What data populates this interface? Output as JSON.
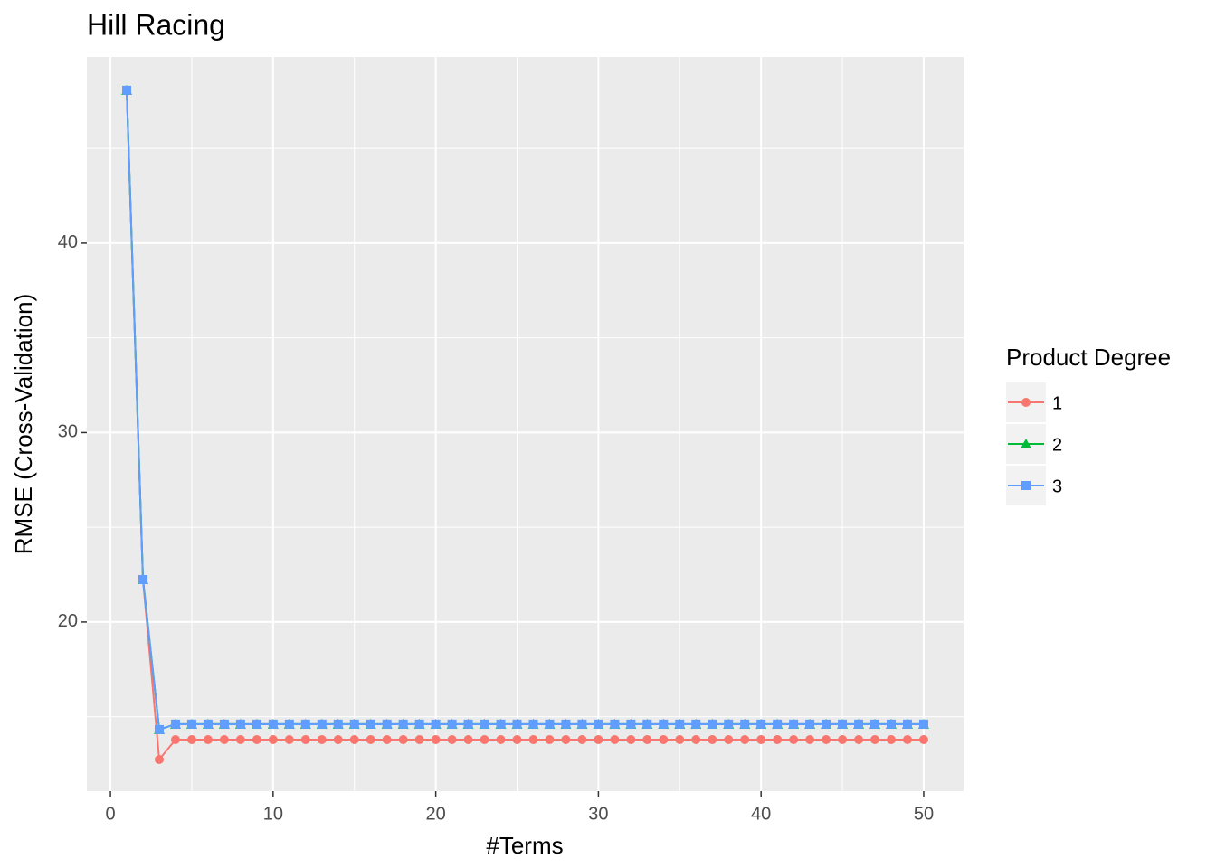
{
  "chart_data": {
    "type": "line",
    "title": "Hill Racing",
    "xlabel": "#Terms",
    "ylabel": "RMSE (Cross-Validation)",
    "legend_title": "Product Degree",
    "legend": "right",
    "x": [
      1,
      2,
      3,
      4,
      5,
      6,
      7,
      8,
      9,
      10,
      11,
      12,
      13,
      14,
      15,
      16,
      17,
      18,
      19,
      20,
      21,
      22,
      23,
      24,
      25,
      26,
      27,
      28,
      29,
      30,
      31,
      32,
      33,
      34,
      35,
      36,
      37,
      38,
      39,
      40,
      41,
      42,
      43,
      44,
      45,
      46,
      47,
      48,
      49,
      50
    ],
    "series": [
      {
        "name": "1",
        "color": "#f8766d",
        "marker": "circle",
        "values": [
          48.07,
          22.24,
          12.74,
          13.79,
          13.79,
          13.79,
          13.79,
          13.79,
          13.79,
          13.79,
          13.79,
          13.79,
          13.79,
          13.79,
          13.79,
          13.79,
          13.79,
          13.79,
          13.79,
          13.79,
          13.79,
          13.79,
          13.79,
          13.79,
          13.79,
          13.79,
          13.79,
          13.79,
          13.79,
          13.79,
          13.79,
          13.79,
          13.79,
          13.79,
          13.79,
          13.79,
          13.79,
          13.79,
          13.79,
          13.79,
          13.79,
          13.79,
          13.79,
          13.79,
          13.79,
          13.79,
          13.79,
          13.79,
          13.79,
          13.79
        ]
      },
      {
        "name": "2",
        "color": "#00ba38",
        "marker": "triangle",
        "values": [
          48.07,
          22.24,
          14.32,
          14.61,
          14.61,
          14.61,
          14.61,
          14.61,
          14.61,
          14.61,
          14.61,
          14.61,
          14.61,
          14.61,
          14.61,
          14.61,
          14.61,
          14.61,
          14.61,
          14.61,
          14.61,
          14.61,
          14.61,
          14.61,
          14.61,
          14.61,
          14.61,
          14.61,
          14.61,
          14.61,
          14.61,
          14.61,
          14.61,
          14.61,
          14.61,
          14.61,
          14.61,
          14.61,
          14.61,
          14.61,
          14.61,
          14.61,
          14.61,
          14.61,
          14.61,
          14.61,
          14.61,
          14.61,
          14.61,
          14.61
        ]
      },
      {
        "name": "3",
        "color": "#619cff",
        "marker": "square",
        "values": [
          48.07,
          22.24,
          14.32,
          14.61,
          14.61,
          14.61,
          14.61,
          14.61,
          14.61,
          14.61,
          14.61,
          14.61,
          14.61,
          14.61,
          14.61,
          14.61,
          14.61,
          14.61,
          14.61,
          14.61,
          14.61,
          14.61,
          14.61,
          14.61,
          14.61,
          14.61,
          14.61,
          14.61,
          14.61,
          14.61,
          14.61,
          14.61,
          14.61,
          14.61,
          14.61,
          14.61,
          14.61,
          14.61,
          14.61,
          14.61,
          14.61,
          14.61,
          14.61,
          14.61,
          14.61,
          14.61,
          14.61,
          14.61,
          14.61,
          14.61
        ]
      }
    ],
    "xlim": [
      -1.45,
      52.45
    ],
    "xticks": [
      0,
      10,
      20,
      30,
      40,
      50
    ],
    "xminorticks": [
      5,
      15,
      25,
      35,
      45
    ],
    "ylim": [
      11.07,
      49.83
    ],
    "yticks": [
      20,
      30,
      40
    ],
    "yminorticks": [
      15,
      25,
      35,
      45
    ],
    "grid": true
  }
}
